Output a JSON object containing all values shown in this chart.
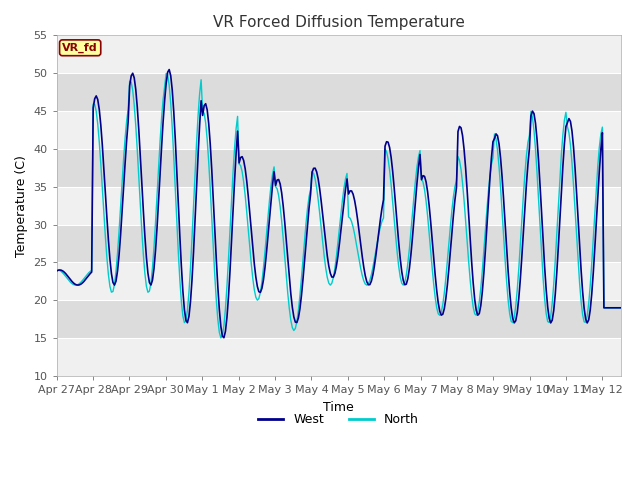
{
  "title": "VR Forced Diffusion Temperature",
  "xlabel": "Time",
  "ylabel": "Temperature (C)",
  "ylim": [
    10,
    55
  ],
  "yticks": [
    10,
    15,
    20,
    25,
    30,
    35,
    40,
    45,
    50,
    55
  ],
  "west_color": "#00008B",
  "north_color": "#00CCCC",
  "annotation_text": "VR_fd",
  "annotation_bg": "#FFFFA0",
  "annotation_border": "#8B0000",
  "fig_bg": "#FFFFFF",
  "plot_bg": "#E8E8E8",
  "band_light": "#F0F0F0",
  "band_dark": "#DCDCDC",
  "title_fontsize": 11,
  "axis_fontsize": 9,
  "tick_fontsize": 8,
  "tick_labels": [
    "Apr 27",
    "Apr 28",
    "Apr 29",
    "Apr 30",
    "May 1",
    "May 2",
    "May 3",
    "May 4",
    "May 5",
    "May 6",
    "May 7",
    "May 8",
    "May 9",
    "May 10",
    "May 11",
    "May 12"
  ],
  "day_mins_west": [
    22,
    22,
    22,
    17,
    15,
    21,
    17,
    23,
    22,
    22,
    18,
    18,
    17,
    17,
    17,
    19
  ],
  "day_maxs_west": [
    24,
    47,
    50,
    50.5,
    46,
    39,
    36,
    37.5,
    34.5,
    41,
    36.5,
    43,
    42,
    45,
    44,
    19
  ],
  "day_mins_north": [
    22,
    21,
    21,
    17,
    15,
    20,
    16,
    22,
    22,
    22,
    18,
    18,
    17,
    17,
    17,
    19
  ],
  "day_maxs_north": [
    24,
    46,
    49,
    50,
    45,
    38,
    35,
    37,
    31,
    40,
    36,
    39,
    42,
    45,
    43,
    19
  ]
}
